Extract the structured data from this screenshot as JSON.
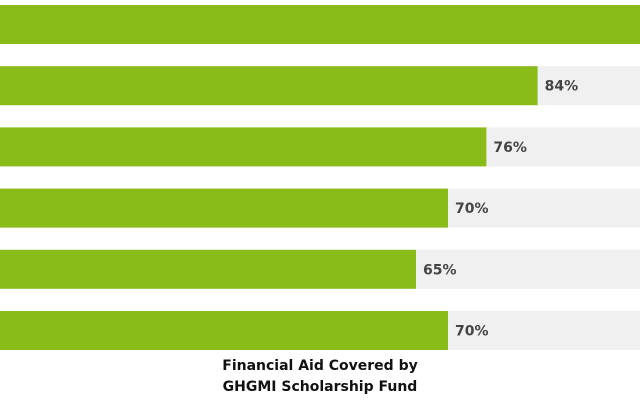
{
  "chart_data": {
    "type": "hbar",
    "title": "Financial Aid Covered by GHGMI Scholarship Fund",
    "values": [
      100,
      84,
      76,
      70,
      65,
      70
    ],
    "value_labels": [
      null,
      "84%",
      "76%",
      "70%",
      "65%",
      "70%"
    ],
    "xlim": [
      0,
      100
    ],
    "color": "#89bc19",
    "track_color": "#f0f0f0"
  }
}
